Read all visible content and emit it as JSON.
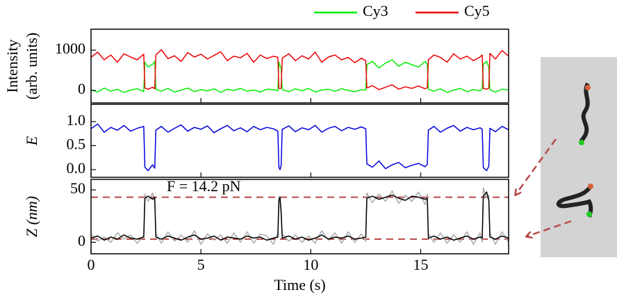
{
  "chart_data": [
    {
      "type": "line",
      "ylabel": [
        "Intensity",
        "(arb. units)"
      ],
      "legend": "top-right",
      "xlim": [
        0,
        19
      ],
      "xticks": [
        0,
        5,
        10,
        15
      ],
      "ylim": [
        -310,
        1520
      ],
      "yticks": [
        0,
        1000
      ],
      "x": [
        0,
        0.3,
        0.6,
        0.9,
        1.2,
        1.5,
        1.8,
        2.1,
        2.4,
        2.45,
        2.6,
        2.8,
        2.9,
        2.95,
        3.2,
        3.5,
        3.8,
        4.1,
        4.4,
        4.7,
        5.0,
        5.3,
        5.6,
        5.9,
        6.2,
        6.5,
        6.8,
        7.1,
        7.4,
        7.7,
        8.0,
        8.3,
        8.5,
        8.55,
        8.6,
        8.65,
        8.7,
        9.0,
        9.3,
        9.6,
        9.9,
        10.2,
        10.5,
        10.8,
        11.1,
        11.4,
        11.7,
        12.0,
        12.3,
        12.5,
        12.55,
        12.8,
        13.1,
        13.4,
        13.7,
        14.0,
        14.3,
        14.6,
        14.9,
        15.2,
        15.3,
        15.35,
        15.6,
        15.9,
        16.2,
        16.5,
        16.8,
        17.1,
        17.4,
        17.7,
        17.8,
        17.85,
        18.0,
        18.1,
        18.15,
        18.4,
        18.7,
        19.0
      ],
      "series": [
        {
          "name": "Cy3",
          "color": "#00ee00",
          "values": [
            20,
            -40,
            60,
            -20,
            30,
            -50,
            10,
            40,
            -30,
            700,
            580,
            650,
            720,
            30,
            -20,
            50,
            -40,
            10,
            60,
            -30,
            20,
            -10,
            40,
            -50,
            30,
            0,
            50,
            -20,
            10,
            -40,
            30,
            20,
            -10,
            700,
            620,
            560,
            20,
            -30,
            40,
            -10,
            50,
            -40,
            10,
            30,
            -20,
            40,
            0,
            -30,
            20,
            10,
            640,
            720,
            560,
            680,
            760,
            600,
            700,
            640,
            580,
            720,
            650,
            30,
            -20,
            40,
            -50,
            10,
            50,
            -30,
            20,
            -10,
            30,
            650,
            720,
            580,
            20,
            -40,
            30,
            10
          ]
        },
        {
          "name": "Cy5",
          "color": "#ee0000",
          "values": [
            820,
            950,
            760,
            880,
            700,
            910,
            830,
            760,
            900,
            60,
            30,
            80,
            40,
            880,
            1010,
            790,
            860,
            720,
            940,
            830,
            900,
            780,
            870,
            960,
            740,
            850,
            810,
            920,
            700,
            880,
            790,
            850,
            820,
            60,
            40,
            70,
            800,
            910,
            740,
            860,
            780,
            950,
            700,
            830,
            880,
            760,
            820,
            690,
            800,
            740,
            60,
            120,
            20,
            80,
            140,
            30,
            90,
            50,
            110,
            40,
            70,
            760,
            880,
            820,
            700,
            910,
            780,
            850,
            740,
            830,
            880,
            50,
            30,
            60,
            920,
            780,
            990,
            850
          ]
        }
      ]
    },
    {
      "type": "line",
      "ylabel": "E",
      "xlim": [
        0,
        19
      ],
      "xticks": [
        0,
        5,
        10,
        15
      ],
      "ylim": [
        -0.16,
        1.36
      ],
      "yticks": [
        {
          "value": 0,
          "label": "0.0"
        },
        0.5,
        {
          "value": 1,
          "label": "1.0"
        }
      ],
      "x": [
        0,
        0.3,
        0.6,
        0.9,
        1.2,
        1.5,
        1.8,
        2.1,
        2.4,
        2.45,
        2.6,
        2.8,
        2.9,
        2.95,
        3.2,
        3.5,
        3.8,
        4.1,
        4.4,
        4.7,
        5.0,
        5.3,
        5.6,
        5.9,
        6.2,
        6.5,
        6.8,
        7.1,
        7.4,
        7.7,
        8.0,
        8.3,
        8.5,
        8.55,
        8.6,
        8.65,
        8.7,
        9.0,
        9.3,
        9.6,
        9.9,
        10.2,
        10.5,
        10.8,
        11.1,
        11.4,
        11.7,
        12.0,
        12.3,
        12.5,
        12.55,
        12.8,
        13.1,
        13.4,
        13.7,
        14.0,
        14.3,
        14.6,
        14.9,
        15.2,
        15.3,
        15.35,
        15.6,
        15.9,
        16.2,
        16.5,
        16.8,
        17.1,
        17.4,
        17.7,
        17.8,
        17.85,
        18.0,
        18.1,
        18.15,
        18.4,
        18.7,
        19.0
      ],
      "series": [
        {
          "color": "#0000dd",
          "values": [
            0.85,
            0.95,
            0.78,
            0.88,
            0.82,
            0.92,
            0.8,
            0.86,
            0.9,
            0.05,
            -0.02,
            0.1,
            0.03,
            0.82,
            0.9,
            0.78,
            0.86,
            0.93,
            0.8,
            0.88,
            0.84,
            0.91,
            0.77,
            0.85,
            0.92,
            0.81,
            0.87,
            0.79,
            0.9,
            0.83,
            0.88,
            0.85,
            0.8,
            0.05,
            0.0,
            0.08,
            0.84,
            0.91,
            0.79,
            0.87,
            0.83,
            0.92,
            0.78,
            0.86,
            0.9,
            0.81,
            0.88,
            0.84,
            0.89,
            0.85,
            0.12,
            0.05,
            0.18,
            0.02,
            0.1,
            0.15,
            0.04,
            0.09,
            0.13,
            0.06,
            0.11,
            0.82,
            0.9,
            0.78,
            0.86,
            0.92,
            0.8,
            0.88,
            0.83,
            0.87,
            0.84,
            0.04,
            -0.02,
            0.07,
            0.86,
            0.79,
            0.9,
            0.83
          ]
        }
      ]
    },
    {
      "type": "line",
      "ylabel": "Z (nm)",
      "xlabel": "Time (s)",
      "annotation": "F = 14.2 pN",
      "xlim": [
        0,
        19
      ],
      "xticks": [
        0,
        5,
        10,
        15
      ],
      "ylim": [
        -11,
        60
      ],
      "yticks": [
        0,
        50
      ],
      "hlines": [
        43,
        3
      ],
      "hline_color": "#b84a4a",
      "x": [
        0,
        0.3,
        0.6,
        0.9,
        1.2,
        1.5,
        1.8,
        2.1,
        2.4,
        2.45,
        2.6,
        2.8,
        2.9,
        2.95,
        3.2,
        3.5,
        3.8,
        4.1,
        4.4,
        4.7,
        5.0,
        5.3,
        5.6,
        5.9,
        6.2,
        6.5,
        6.8,
        7.1,
        7.4,
        7.7,
        8.0,
        8.3,
        8.5,
        8.55,
        8.6,
        8.65,
        8.7,
        9.0,
        9.3,
        9.6,
        9.9,
        10.2,
        10.5,
        10.8,
        11.1,
        11.4,
        11.7,
        12.0,
        12.3,
        12.5,
        12.55,
        12.8,
        13.1,
        13.4,
        13.7,
        14.0,
        14.3,
        14.6,
        14.9,
        15.2,
        15.3,
        15.35,
        15.6,
        15.9,
        16.2,
        16.5,
        16.8,
        17.1,
        17.4,
        17.7,
        17.8,
        17.85,
        18.0,
        18.1,
        18.15,
        18.4,
        18.7,
        19.0
      ],
      "series": [
        {
          "color": "#aaaaaa",
          "values": [
            8,
            1,
            5,
            0,
            9,
            3,
            7,
            -1,
            6,
            46,
            39,
            47,
            38,
            9,
            -1,
            10,
            1,
            7,
            0,
            11,
            -2,
            8,
            2,
            7,
            -1,
            9,
            0,
            10,
            -1,
            8,
            6,
            -2,
            9,
            44,
            38,
            26,
            8,
            1,
            7,
            0,
            6,
            -1,
            11,
            2,
            9,
            -1,
            10,
            0,
            8,
            1,
            47,
            38,
            46,
            39,
            49,
            37,
            45,
            39,
            48,
            36,
            46,
            8,
            0,
            9,
            -1,
            7,
            0,
            10,
            -2,
            9,
            0,
            52,
            42,
            45,
            9,
            -2,
            10,
            0
          ]
        },
        {
          "color": "#000000",
          "values": [
            4,
            6,
            2,
            5,
            3,
            7,
            4,
            3,
            5,
            42,
            44,
            41,
            43,
            5,
            3,
            6,
            4,
            2,
            5,
            7,
            3,
            4,
            6,
            2,
            5,
            4,
            3,
            6,
            4,
            5,
            2,
            4,
            5,
            40,
            43,
            30,
            4,
            6,
            3,
            5,
            2,
            4,
            7,
            3,
            5,
            4,
            6,
            3,
            4,
            5,
            42,
            44,
            41,
            43,
            45,
            42,
            40,
            44,
            43,
            41,
            42,
            4,
            6,
            3,
            5,
            2,
            4,
            6,
            3,
            5,
            4,
            44,
            48,
            40,
            5,
            3,
            6,
            4
          ]
        }
      ]
    }
  ]
}
